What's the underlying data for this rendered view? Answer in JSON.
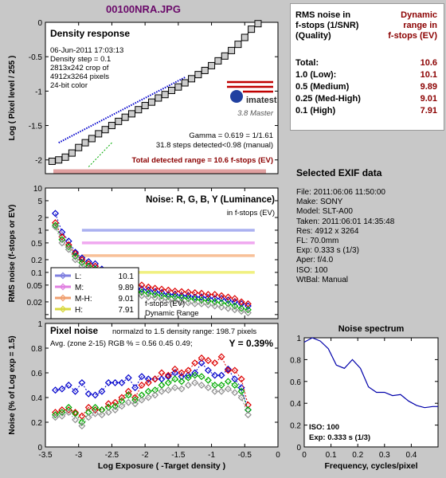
{
  "file_title": "00100NRA.JPG",
  "summary_table": {
    "header_left": [
      "RMS noise in",
      "f-stops (1/SNR)",
      "(Quality)"
    ],
    "header_right": [
      "Dynamic",
      "range in",
      "f-stops (EV)"
    ],
    "rows": [
      {
        "label": "Total:",
        "value": "10.6"
      },
      {
        "label": "1.0  (Low):",
        "value": "10.1"
      },
      {
        "label": "0.5  (Medium)",
        "value": "9.89"
      },
      {
        "label": "0.25 (Med-High)",
        "value": "9.01"
      },
      {
        "label": "0.1  (High)",
        "value": "7.91"
      }
    ]
  },
  "exif": {
    "header": "Selected EXIF data",
    "lines": [
      "File:  2011:06:06 11:50:00",
      "Make:  SONY",
      "Model: SLT-A00",
      "Taken: 2011:06:01 14:35:48",
      "Res:   4912 x 3264",
      "FL:  70.0mm",
      "Exp:  0.333 s  (1/3)",
      "Aper:  f/4.0",
      "ISO:  100",
      "WtBal: Manual"
    ]
  },
  "chart_data": [
    {
      "type": "line",
      "title": "Density response",
      "info_lines": [
        "06-Jun-2011 17:03:13",
        "Density step = 0.1",
        "2813x242 crop of",
        "4912x3264 pixels",
        "24-bit color"
      ],
      "logo": {
        "brand": "imatest",
        "edition": "3.8  Master",
        "color": "#c00000"
      },
      "annotations": [
        "Gamma = 0.619 = 1/1.61",
        "31.8 steps detected<0.98 (manual)"
      ],
      "range_label": "Total detected range = 10.6 f-stops (EV)",
      "ylabel": "Log ( Pixel level / 255 )",
      "ylim": [
        -2.2,
        0
      ],
      "yticks": [
        0,
        -0.5,
        -1,
        -1.5,
        -2
      ],
      "xlim": [
        -3.5,
        0
      ],
      "series": [
        {
          "x": [
            -3.4,
            -3.3,
            -3.2,
            -3.1,
            -3.0,
            -2.9,
            -2.8,
            -2.7,
            -2.6,
            -2.5,
            -2.4,
            -2.3,
            -2.2,
            -2.1,
            -2.0,
            -1.9,
            -1.8,
            -1.7,
            -1.6,
            -1.5,
            -1.4,
            -1.3,
            -1.2,
            -1.1,
            -1.0,
            -0.9,
            -0.8,
            -0.7,
            -0.6,
            -0.5,
            -0.4,
            -0.3
          ],
          "y": [
            -2.02,
            -2.0,
            -1.96,
            -1.9,
            -1.82,
            -1.75,
            -1.69,
            -1.62,
            -1.56,
            -1.5,
            -1.44,
            -1.38,
            -1.33,
            -1.27,
            -1.21,
            -1.16,
            -1.1,
            -1.05,
            -0.99,
            -0.94,
            -0.88,
            -0.82,
            -0.76,
            -0.7,
            -0.63,
            -0.56,
            -0.49,
            -0.41,
            -0.32,
            -0.22,
            -0.1,
            -0.02
          ],
          "color": "#000000"
        },
        {
          "x": [
            -3.3,
            -1.4
          ],
          "y": [
            -1.75,
            -0.8
          ],
          "color": "#0000cc"
        },
        {
          "x": [
            -2.85,
            -2.5
          ],
          "y": [
            -2.1,
            -1.75
          ],
          "color": "#00aa00"
        }
      ]
    },
    {
      "type": "line",
      "title": "Noise: R, G, B, Y (Luminance)",
      "subtitle": "in f-stops (EV)",
      "ylabel": "RMS noise (f-stops or EV)",
      "scale": "log",
      "ylim": [
        0.008,
        10
      ],
      "yticks": [
        10,
        5,
        2,
        1,
        0.5,
        0.2,
        0.1,
        0.05,
        0.02,
        0.01
      ],
      "ytick_labels": [
        "10",
        "5",
        "2",
        "1",
        "0.5",
        "0.2",
        "0.1",
        "0.05",
        "0.02",
        ""
      ],
      "xlim": [
        -3.5,
        0
      ],
      "hlines": [
        {
          "value": 1.0,
          "color": "#aab0f0"
        },
        {
          "value": 0.5,
          "color": "#f0a8f0"
        },
        {
          "value": 0.25,
          "color": "#f8c098"
        },
        {
          "value": 0.1,
          "color": "#f0f080"
        }
      ],
      "legend": [
        {
          "name": "L:",
          "value": "10.1",
          "color": "#8080e0"
        },
        {
          "name": "M:",
          "value": "9.89",
          "color": "#e080e0"
        },
        {
          "name": "M-H:",
          "value": "9.01",
          "color": "#f0a070"
        },
        {
          "name": "H:",
          "value": "7.91",
          "color": "#d8d840"
        }
      ],
      "notes": [
        "f-stops (EV)",
        "Dynamic Range"
      ],
      "x": [
        -3.35,
        -3.25,
        -3.15,
        -3.05,
        -2.95,
        -2.85,
        -2.75,
        -2.65,
        -2.55,
        -2.45,
        -2.35,
        -2.25,
        -2.15,
        -2.05,
        -1.95,
        -1.85,
        -1.75,
        -1.65,
        -1.55,
        -1.45,
        -1.35,
        -1.25,
        -1.15,
        -1.05,
        -0.95,
        -0.85,
        -0.75,
        -0.65,
        -0.55,
        -0.45
      ],
      "series": [
        {
          "name": "B",
          "color": "#0000cc",
          "values": [
            2.5,
            0.9,
            0.55,
            0.3,
            0.22,
            0.18,
            0.16,
            0.12,
            0.09,
            0.07,
            0.06,
            0.05,
            0.045,
            0.04,
            0.038,
            0.035,
            0.033,
            0.03,
            0.03,
            0.028,
            0.028,
            0.026,
            0.026,
            0.025,
            0.024,
            0.024,
            0.022,
            0.02,
            0.018,
            0.016
          ]
        },
        {
          "name": "R",
          "color": "#dd0000",
          "values": [
            1.5,
            0.7,
            0.45,
            0.28,
            0.2,
            0.16,
            0.14,
            0.1,
            0.08,
            0.065,
            0.055,
            0.05,
            0.045,
            0.05,
            0.045,
            0.042,
            0.04,
            0.038,
            0.036,
            0.035,
            0.034,
            0.033,
            0.032,
            0.03,
            0.03,
            0.028,
            0.026,
            0.024,
            0.02,
            0.018
          ]
        },
        {
          "name": "G",
          "color": "#00aa00",
          "values": [
            1.3,
            0.6,
            0.4,
            0.24,
            0.17,
            0.14,
            0.12,
            0.09,
            0.07,
            0.055,
            0.045,
            0.04,
            0.035,
            0.034,
            0.032,
            0.03,
            0.028,
            0.027,
            0.026,
            0.025,
            0.024,
            0.023,
            0.022,
            0.021,
            0.02,
            0.019,
            0.018,
            0.016,
            0.014,
            0.013
          ]
        },
        {
          "name": "Y",
          "color": "#909090",
          "values": [
            1.2,
            0.5,
            0.35,
            0.2,
            0.14,
            0.12,
            0.1,
            0.075,
            0.06,
            0.045,
            0.038,
            0.033,
            0.03,
            0.028,
            0.026,
            0.025,
            0.023,
            0.022,
            0.021,
            0.02,
            0.019,
            0.018,
            0.018,
            0.017,
            0.016,
            0.015,
            0.014,
            0.013,
            0.012,
            0.011
          ]
        }
      ]
    },
    {
      "type": "line",
      "title": "Pixel noise",
      "subtitle": "normalzd to 1.5 density range: 198.7 pixels",
      "avg_label": "Avg. (zone 2-15) RGB % = 0.56  0.45  0.49;",
      "y_label_value": "Y = 0.39%",
      "ylabel": "Noise (% of Log exp = 1.5)",
      "xlabel": "Log Exposure ( -Target density )",
      "ylim": [
        0,
        1
      ],
      "yticks": [
        0,
        0.2,
        0.4,
        0.6,
        0.8,
        1
      ],
      "xlim": [
        -3.5,
        0
      ],
      "xticks": [
        -3.5,
        -3,
        -2.5,
        -2,
        -1.5,
        -1,
        -0.5,
        0
      ],
      "x": [
        -3.35,
        -3.25,
        -3.15,
        -3.05,
        -2.95,
        -2.85,
        -2.75,
        -2.65,
        -2.55,
        -2.45,
        -2.35,
        -2.25,
        -2.15,
        -2.05,
        -1.95,
        -1.85,
        -1.75,
        -1.65,
        -1.55,
        -1.45,
        -1.35,
        -1.25,
        -1.15,
        -1.05,
        -0.95,
        -0.85,
        -0.75,
        -0.65,
        -0.55,
        -0.45
      ],
      "series": [
        {
          "name": "B",
          "color": "#0000cc",
          "values": [
            0.46,
            0.47,
            0.5,
            0.45,
            0.52,
            0.43,
            0.42,
            0.45,
            0.52,
            0.52,
            0.52,
            0.56,
            0.48,
            0.57,
            0.55,
            0.55,
            0.55,
            0.57,
            0.6,
            0.57,
            0.58,
            0.6,
            0.68,
            0.62,
            0.58,
            0.58,
            0.63,
            0.55,
            0.48,
            0.3
          ]
        },
        {
          "name": "R",
          "color": "#dd0000",
          "values": [
            0.28,
            0.3,
            0.3,
            0.28,
            0.25,
            0.32,
            0.3,
            0.3,
            0.35,
            0.36,
            0.4,
            0.45,
            0.4,
            0.5,
            0.52,
            0.55,
            0.6,
            0.58,
            0.63,
            0.6,
            0.62,
            0.68,
            0.72,
            0.7,
            0.68,
            0.73,
            0.62,
            0.62,
            0.55,
            0.34
          ]
        },
        {
          "name": "G",
          "color": "#00aa00",
          "values": [
            0.26,
            0.28,
            0.32,
            0.27,
            0.2,
            0.28,
            0.32,
            0.3,
            0.32,
            0.33,
            0.37,
            0.42,
            0.38,
            0.42,
            0.45,
            0.46,
            0.5,
            0.52,
            0.55,
            0.53,
            0.56,
            0.58,
            0.57,
            0.54,
            0.5,
            0.5,
            0.53,
            0.5,
            0.45,
            0.3
          ]
        },
        {
          "name": "Y",
          "color": "#909090",
          "values": [
            0.24,
            0.25,
            0.28,
            0.22,
            0.17,
            0.24,
            0.27,
            0.26,
            0.28,
            0.3,
            0.33,
            0.36,
            0.35,
            0.38,
            0.4,
            0.42,
            0.45,
            0.46,
            0.48,
            0.47,
            0.5,
            0.52,
            0.5,
            0.48,
            0.45,
            0.45,
            0.47,
            0.44,
            0.4,
            0.26
          ]
        }
      ]
    },
    {
      "type": "line",
      "title": "Noise spectrum",
      "xlabel": "Frequency, cycles/pixel",
      "iso_label": "ISO:  100",
      "exp_label": "Exp:  0.333 s  (1/3)",
      "xlim": [
        0,
        0.5
      ],
      "xticks": [
        0,
        0.1,
        0.2,
        0.3,
        0.4
      ],
      "ylim": [
        0,
        1
      ],
      "yticks": [
        0,
        0.2,
        0.4,
        0.6,
        0.8,
        1
      ],
      "series": [
        {
          "name": "spectrum",
          "color": "#0000aa",
          "x": [
            0,
            0.03,
            0.06,
            0.09,
            0.12,
            0.15,
            0.18,
            0.21,
            0.24,
            0.27,
            0.3,
            0.33,
            0.36,
            0.39,
            0.42,
            0.45,
            0.48,
            0.5
          ],
          "y": [
            0.96,
            1.0,
            0.97,
            0.9,
            0.75,
            0.72,
            0.8,
            0.72,
            0.55,
            0.5,
            0.5,
            0.47,
            0.48,
            0.42,
            0.38,
            0.36,
            0.37,
            0.37
          ]
        }
      ]
    }
  ]
}
